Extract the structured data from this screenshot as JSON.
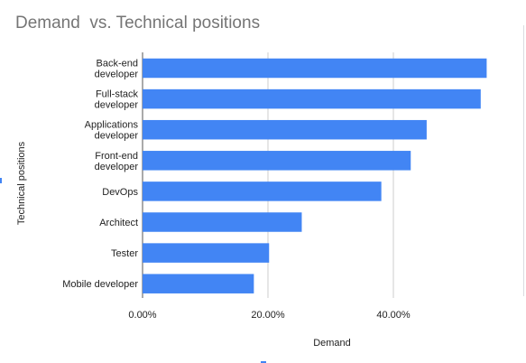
{
  "colors": {
    "bar": "#4285f4",
    "grid": "#cccccc",
    "axis_text": "#222222",
    "title_text": "#757575"
  },
  "chart_data": {
    "type": "bar",
    "orientation": "horizontal",
    "title": "Demand  vs. Technical positions",
    "xlabel": "Demand",
    "ylabel": "Technical positions",
    "categories": [
      "Back-end developer",
      "Full-stack developer",
      "Applications developer",
      "Front-end developer",
      "DevOps",
      "Architect",
      "Tester",
      "Mobile developer"
    ],
    "category_label_lines": [
      [
        "Back-end",
        "developer"
      ],
      [
        "Full-stack",
        "developer"
      ],
      [
        "Applications",
        "developer"
      ],
      [
        "Front-end",
        "developer"
      ],
      [
        "DevOps"
      ],
      [
        "Architect"
      ],
      [
        "Tester"
      ],
      [
        "Mobile developer"
      ]
    ],
    "values": [
      0.5488,
      0.5393,
      0.4531,
      0.4277,
      0.3808,
      0.2539,
      0.2018,
      0.1775
    ],
    "xlim": [
      0,
      0.6
    ],
    "x_ticks": [
      0,
      0.2,
      0.4
    ],
    "x_tick_labels": [
      "0.00%",
      "20.00%",
      "40.00%"
    ],
    "grid": true,
    "legend": "none"
  }
}
